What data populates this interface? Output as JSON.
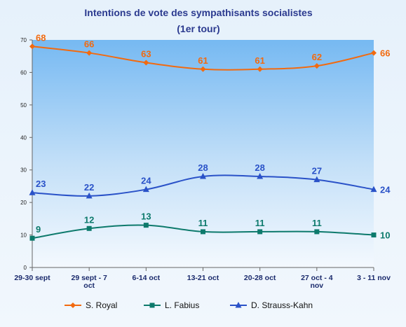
{
  "chart_data": {
    "type": "line",
    "title": "Intentions de vote des sympathisants socialistes",
    "subtitle": "(1er tour)",
    "xlabel": "",
    "ylabel": "",
    "categories": [
      "29-30 sept",
      "29 sept - 7 oct",
      "6-14 oct",
      "13-21 oct",
      "20-28 oct",
      "27 oct - 4 nov",
      "3 - 11 nov"
    ],
    "ylim": [
      0,
      70
    ],
    "yticks": [
      "0",
      "10",
      "20",
      "30",
      "40",
      "50",
      "60",
      "70"
    ],
    "grid": false,
    "legend_position": "bottom",
    "series": [
      {
        "name": "S. Royal",
        "values": [
          68,
          66,
          63,
          61,
          61,
          62,
          66
        ],
        "labels": [
          "68",
          "66",
          "63",
          "61",
          "61",
          "62",
          "66"
        ],
        "color": "#f26a0f",
        "marker": "diamond"
      },
      {
        "name": "L. Fabius",
        "values": [
          9,
          12,
          13,
          11,
          11,
          11,
          10
        ],
        "labels": [
          "9",
          "12",
          "13",
          "11",
          "11",
          "11",
          "10"
        ],
        "color": "#0d7a6c",
        "marker": "square"
      },
      {
        "name": "D. Strauss-Kahn",
        "values": [
          23,
          22,
          24,
          28,
          28,
          27,
          24
        ],
        "labels": [
          "23",
          "22",
          "24",
          "28",
          "28",
          "27",
          "24"
        ],
        "color": "#2a52c8",
        "marker": "triangle"
      }
    ]
  }
}
